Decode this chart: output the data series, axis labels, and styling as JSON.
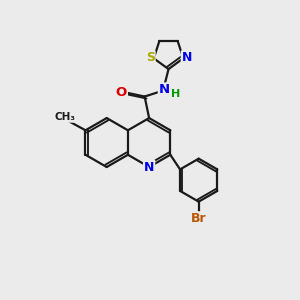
{
  "background_color": "#ebebeb",
  "bond_color": "#1a1a1a",
  "atom_colors": {
    "N": "#0000ee",
    "O": "#dd0000",
    "S": "#aaaa00",
    "Br": "#bb5500",
    "C": "#1a1a1a",
    "H": "#009900"
  },
  "lw": 1.6,
  "ring_r": 0.82,
  "xlim": [
    0,
    10
  ],
  "ylim": [
    0,
    10
  ]
}
